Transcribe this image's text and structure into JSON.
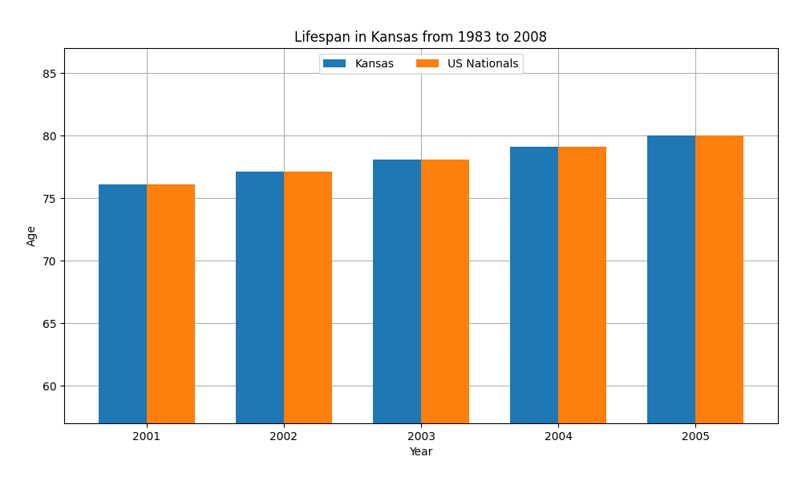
{
  "chart_data": {
    "type": "bar",
    "title": "Lifespan in Kansas from 1983 to 2008",
    "x_label": "Year",
    "y_label": "Age",
    "categories": [
      "2001",
      "2002",
      "2003",
      "2004",
      "2005"
    ],
    "series": [
      {
        "name": "Kansas",
        "values": [
          76.1,
          77.1,
          78.1,
          79.1,
          80.0
        ]
      },
      {
        "name": "US Nationals",
        "values": [
          76.1,
          77.1,
          78.1,
          79.1,
          80.0
        ]
      }
    ],
    "ylim": [
      57,
      87
    ],
    "yticks": [
      60,
      65,
      70,
      75,
      80,
      85
    ],
    "grid": true,
    "legend": "upper center"
  }
}
